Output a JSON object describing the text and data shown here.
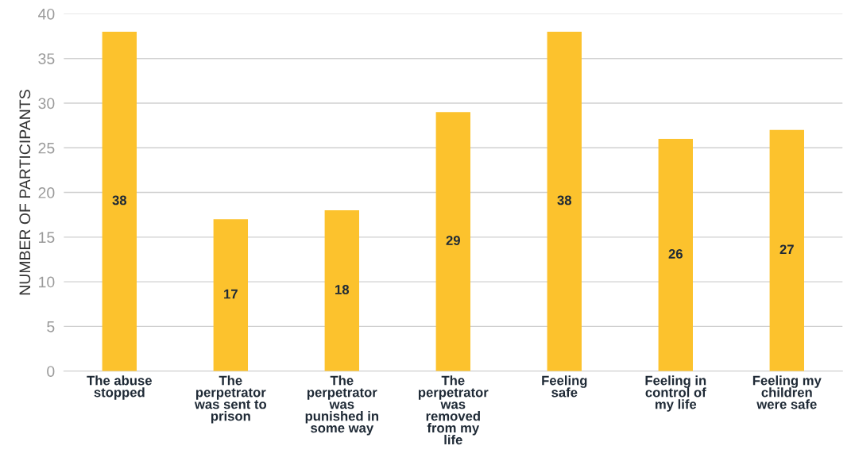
{
  "chart_data": {
    "type": "bar",
    "ylabel": "NUMBER OF PARTICIPANTS",
    "categories": [
      "The abuse\nstopped",
      "The\nperpetrator\nwas sent to\nprison",
      "The\nperpetrator\nwas\npunished in\nsome way",
      "The\nperpetrator\nwas\nremoved\nfrom my\nlife",
      "Feeling\nsafe",
      "Feeling in\ncontrol of\nmy life",
      "Feeling my\nchildren\nwere safe"
    ],
    "values": [
      38,
      17,
      18,
      29,
      38,
      26,
      27
    ],
    "color": "#fcc22d",
    "ylim": [
      0,
      40
    ],
    "yticks": [
      0,
      5,
      10,
      15,
      20,
      25,
      30,
      35,
      40
    ],
    "grid": "y",
    "data_labels": true,
    "legend": false
  }
}
